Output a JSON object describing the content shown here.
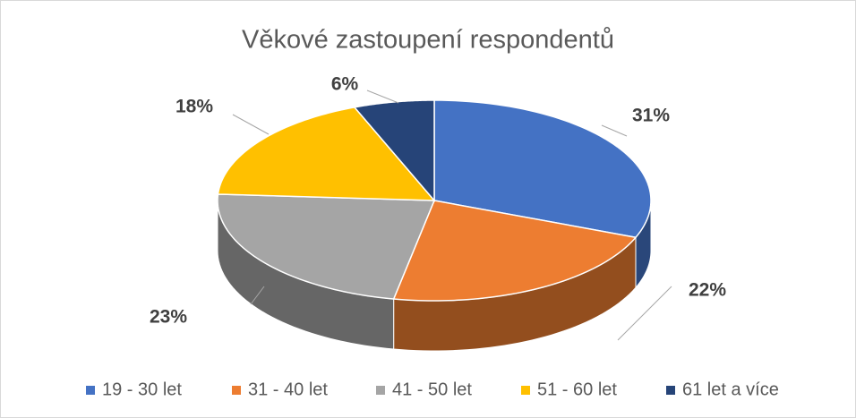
{
  "chart_data": {
    "type": "pie",
    "title": "Věkové zastoupení respondentů",
    "categories": [
      "19 - 30 let",
      "31 - 40 let",
      "41 - 50 let",
      "51 - 60 let",
      "61 let a více"
    ],
    "values": [
      31,
      22,
      23,
      18,
      6
    ],
    "value_labels": [
      "31%",
      "22%",
      "23%",
      "18%",
      "6%"
    ],
    "colors": [
      "#4472c4",
      "#ed7d31",
      "#a5a5a5",
      "#ffc000",
      "#264478"
    ],
    "legend": "bottom"
  }
}
